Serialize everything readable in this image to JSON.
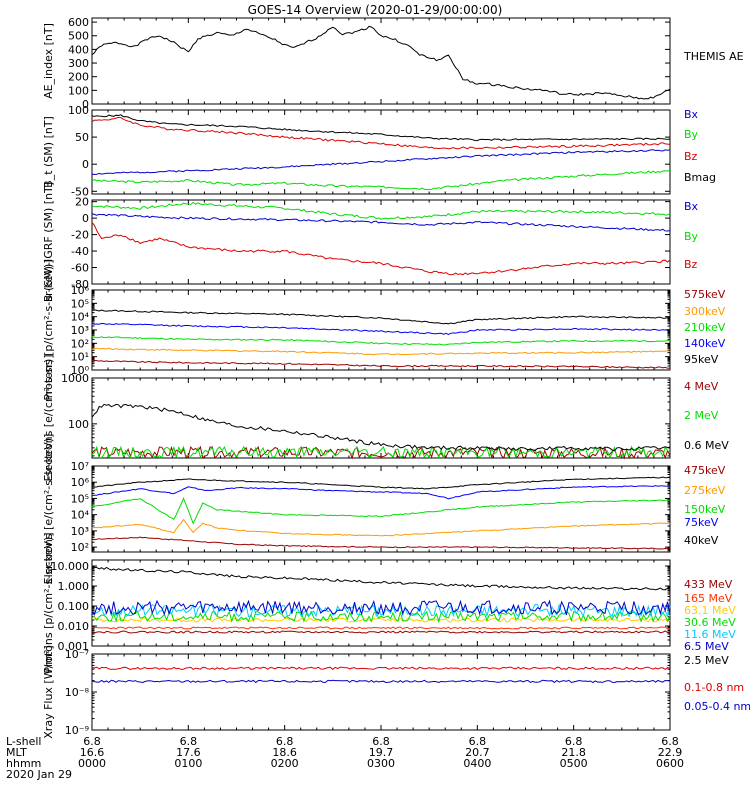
{
  "title": "GOES-14 Overview (2020-01-29/00:00:00)",
  "x_axis": {
    "row_labels": [
      "L-shell",
      "MLT",
      "hhmm",
      "2020 Jan 29"
    ],
    "lshell": [
      "6.8",
      "6.8",
      "6.8",
      "6.8",
      "6.8",
      "6.8",
      "6.8"
    ],
    "mlt": [
      "16.6",
      "17.6",
      "18.6",
      "19.7",
      "20.7",
      "21.8",
      "22.9"
    ],
    "hhmm": [
      "0000",
      "0100",
      "0200",
      "0300",
      "0400",
      "0500",
      "0600"
    ]
  },
  "chart_data": [
    {
      "type": "line",
      "id": "ae",
      "ylabel": "AE_index [nT]",
      "scale": "linear",
      "ylim": [
        0,
        630
      ],
      "ticks": [
        0,
        100,
        200,
        300,
        400,
        500,
        600
      ],
      "tick_labels": [
        "0",
        "100",
        "200",
        "300",
        "400",
        "500",
        "600"
      ],
      "series": [
        {
          "name": "THEMIS AE",
          "color": "#000000",
          "noise": 8,
          "seed": 1,
          "t": [
            0,
            0.1,
            0.25,
            0.45,
            0.55,
            0.7,
            0.85,
            1,
            1.1,
            1.3,
            1.45,
            1.6,
            1.75,
            1.9,
            2.0,
            2.1,
            2.25,
            2.35,
            2.5,
            2.6,
            2.75,
            2.9,
            3.0,
            3.15,
            3.3,
            3.4,
            3.5,
            3.6,
            3.7,
            3.75,
            3.85,
            4.0,
            4.2,
            4.5,
            4.7,
            4.9,
            5.1,
            5.3,
            5.5,
            5.7,
            5.85,
            6.0
          ],
          "v": [
            360,
            430,
            450,
            420,
            470,
            500,
            450,
            380,
            480,
            520,
            500,
            550,
            510,
            470,
            430,
            410,
            460,
            490,
            570,
            510,
            530,
            570,
            500,
            470,
            420,
            360,
            340,
            320,
            360,
            300,
            180,
            150,
            140,
            110,
            100,
            70,
            70,
            80,
            60,
            40,
            50,
            110
          ]
        }
      ]
    },
    {
      "type": "line",
      "id": "b_sm",
      "ylabel": "B_t (SM) [nT]",
      "scale": "linear",
      "ylim": [
        -55,
        100
      ],
      "ticks": [
        -50,
        0,
        50,
        100
      ],
      "tick_labels": [
        "-50",
        "0",
        "50",
        "100"
      ],
      "series": [
        {
          "name": "Bx",
          "color": "#0000cc",
          "noise": 1.5,
          "seed": 2,
          "t": [
            0,
            1,
            2,
            3,
            4,
            5,
            6
          ],
          "v": [
            -18,
            -12,
            -5,
            5,
            15,
            22,
            26
          ]
        },
        {
          "name": "By",
          "color": "#00dd00",
          "noise": 2,
          "seed": 3,
          "t": [
            0,
            0.5,
            1,
            1.5,
            2,
            2.5,
            3,
            3.5,
            3.8,
            4.3,
            5,
            6
          ],
          "v": [
            -30,
            -33,
            -30,
            -38,
            -35,
            -40,
            -42,
            -45,
            -40,
            -30,
            -22,
            -12
          ]
        },
        {
          "name": "Bz",
          "color": "#dd0000",
          "noise": 2,
          "seed": 4,
          "t": [
            0,
            0.3,
            0.5,
            0.8,
            1.5,
            2,
            3,
            3.5,
            4,
            5,
            6
          ],
          "v": [
            80,
            85,
            72,
            65,
            58,
            50,
            38,
            30,
            30,
            33,
            38
          ]
        },
        {
          "name": "Bmag",
          "color": "#000000",
          "noise": 1.5,
          "seed": 5,
          "t": [
            0,
            0.3,
            0.5,
            0.8,
            1.5,
            2,
            3,
            3.5,
            4,
            5,
            6
          ],
          "v": [
            88,
            90,
            80,
            74,
            70,
            64,
            55,
            48,
            45,
            46,
            47
          ]
        }
      ]
    },
    {
      "type": "line",
      "id": "b_igrf",
      "ylabel": "B (SM)-IGRF (SM) [nT]",
      "scale": "linear",
      "ylim": [
        -80,
        22
      ],
      "ticks": [
        -80,
        -60,
        -40,
        -20,
        0,
        20
      ],
      "tick_labels": [
        "-80",
        "-60",
        "-40",
        "-20",
        "0",
        "20"
      ],
      "series": [
        {
          "name": "Bx",
          "color": "#0000cc",
          "noise": 1.2,
          "seed": 6,
          "t": [
            0,
            0.5,
            1,
            2,
            3,
            3.5,
            4,
            5,
            6
          ],
          "v": [
            5,
            2,
            0,
            -2,
            -5,
            -8,
            -5,
            -10,
            -15
          ]
        },
        {
          "name": "By",
          "color": "#00dd00",
          "noise": 1.5,
          "seed": 7,
          "t": [
            0,
            0.5,
            1,
            1.5,
            2,
            2.5,
            3,
            3.5,
            4,
            5,
            6
          ],
          "v": [
            15,
            12,
            18,
            15,
            12,
            5,
            0,
            2,
            8,
            8,
            5
          ]
        },
        {
          "name": "Bz",
          "color": "#dd0000",
          "noise": 1.5,
          "seed": 8,
          "t": [
            0,
            0.1,
            0.3,
            0.5,
            0.7,
            1,
            1.5,
            2,
            2.5,
            3,
            3.5,
            3.8,
            4.2,
            5,
            5.5,
            6
          ],
          "v": [
            -5,
            -25,
            -20,
            -30,
            -25,
            -35,
            -40,
            -40,
            -50,
            -55,
            -65,
            -68,
            -65,
            -55,
            -55,
            -52
          ]
        }
      ]
    },
    {
      "type": "line",
      "id": "protons_low",
      "ylabel": "Protons [p/(cm²-s-sr-keV)]",
      "scale": "log",
      "ylim": [
        1,
        1000000
      ],
      "ticks": [
        1,
        10,
        100,
        1000,
        10000,
        100000,
        1000000
      ],
      "tick_labels": [
        "10⁰",
        "10¹",
        "10²",
        "10³",
        "10⁴",
        "10⁵",
        "10⁶"
      ],
      "series": [
        {
          "name": "575keV",
          "color": "#990000",
          "noise": 0.05,
          "seed": 9,
          "t": [
            0,
            0.5,
            1,
            2,
            3,
            4,
            5,
            6
          ],
          "v": [
            5,
            4,
            3.5,
            3,
            2,
            2,
            1.8,
            1.5
          ]
        },
        {
          "name": "300keV",
          "color": "#ff9900",
          "noise": 0.05,
          "seed": 10,
          "t": [
            0,
            0.5,
            1,
            2,
            3,
            4,
            5,
            6
          ],
          "v": [
            40,
            35,
            30,
            25,
            15,
            18,
            20,
            25
          ]
        },
        {
          "name": "210keV",
          "color": "#00dd00",
          "noise": 0.05,
          "seed": 11,
          "t": [
            0,
            0.5,
            1,
            2,
            3,
            3.7,
            4,
            5,
            6
          ],
          "v": [
            300,
            250,
            200,
            180,
            100,
            80,
            120,
            150,
            150
          ]
        },
        {
          "name": "140keV",
          "color": "#0000ff",
          "noise": 0.05,
          "seed": 12,
          "t": [
            0,
            0.5,
            1,
            2,
            3,
            3.7,
            4,
            5,
            6
          ],
          "v": [
            3000,
            2500,
            2000,
            1500,
            800,
            500,
            1000,
            1200,
            1000
          ]
        },
        {
          "name": "95keV",
          "color": "#000000",
          "noise": 0.05,
          "seed": 13,
          "t": [
            0,
            0.5,
            1,
            2,
            3,
            3.7,
            4,
            5,
            6
          ],
          "v": [
            30000,
            25000,
            20000,
            15000,
            8000,
            3000,
            6000,
            10000,
            8000
          ]
        }
      ]
    },
    {
      "type": "line",
      "id": "electrons_mev",
      "ylabel": "Electrons [e/(cm²-s-sr)]",
      "scale": "log",
      "ylim": [
        18,
        1000
      ],
      "ticks": [
        100,
        1000
      ],
      "tick_labels": [
        "100",
        "1000"
      ],
      "series": [
        {
          "name": "4 MeV",
          "color": "#990000",
          "noise": 0.12,
          "seed": 14,
          "t": [
            0,
            6
          ],
          "v": [
            24,
            23
          ]
        },
        {
          "name": "2 MeV",
          "color": "#00dd00",
          "noise": 0.12,
          "seed": 15,
          "t": [
            0,
            6
          ],
          "v": [
            24,
            24
          ]
        },
        {
          "name": "0.6 MeV",
          "color": "#000000",
          "noise": 0.04,
          "seed": 16,
          "t": [
            0,
            0.1,
            0.5,
            0.9,
            1.2,
            1.5,
            2,
            2.5,
            3,
            3.5,
            4,
            4.5,
            5,
            5.5,
            6
          ],
          "v": [
            150,
            250,
            240,
            180,
            120,
            90,
            70,
            50,
            35,
            30,
            30,
            28,
            30,
            28,
            30
          ]
        }
      ]
    },
    {
      "type": "line",
      "id": "electrons_kev",
      "ylabel": "Electrons [e/(cm²-s-sr-keV)]",
      "scale": "log",
      "ylim": [
        50,
        10000000
      ],
      "ticks": [
        100,
        1000,
        10000,
        100000,
        1000000,
        10000000
      ],
      "tick_labels": [
        "10²",
        "10³",
        "10⁴",
        "10⁵",
        "10⁶",
        "10⁷"
      ],
      "series": [
        {
          "name": "475keV",
          "color": "#990000",
          "noise": 0.03,
          "seed": 17,
          "t": [
            0,
            0.5,
            1,
            1.5,
            2,
            3,
            4,
            5,
            6
          ],
          "v": [
            300,
            400,
            250,
            150,
            120,
            100,
            100,
            90,
            80
          ]
        },
        {
          "name": "275keV",
          "color": "#ff9900",
          "noise": 0.03,
          "seed": 18,
          "t": [
            0,
            0.5,
            0.85,
            0.95,
            1.05,
            1.15,
            1.3,
            1.6,
            2,
            3,
            3.5,
            4,
            5,
            6
          ],
          "v": [
            1500,
            2500,
            800,
            5000,
            800,
            3000,
            1500,
            1000,
            700,
            500,
            700,
            1000,
            2000,
            3000
          ]
        },
        {
          "name": "150keV",
          "color": "#00dd00",
          "noise": 0.03,
          "seed": 19,
          "t": [
            0,
            0.5,
            0.85,
            0.95,
            1.05,
            1.15,
            1.3,
            1.6,
            2,
            3,
            3.5,
            4,
            5,
            6
          ],
          "v": [
            30000,
            100000,
            5000,
            100000,
            3000,
            50000,
            20000,
            15000,
            10000,
            8000,
            15000,
            30000,
            60000,
            80000
          ]
        },
        {
          "name": "75keV",
          "color": "#0000ff",
          "noise": 0.03,
          "seed": 20,
          "t": [
            0,
            0.5,
            0.85,
            1,
            1.2,
            1.5,
            2,
            2.5,
            3,
            3.5,
            3.7,
            4,
            5,
            6
          ],
          "v": [
            150000,
            400000,
            200000,
            500000,
            300000,
            450000,
            400000,
            300000,
            250000,
            200000,
            100000,
            250000,
            500000,
            600000
          ]
        },
        {
          "name": "40keV",
          "color": "#000000",
          "noise": 0.03,
          "seed": 21,
          "t": [
            0,
            0.5,
            1,
            1.5,
            2,
            2.5,
            3,
            3.5,
            4,
            5,
            6
          ],
          "v": [
            500000,
            1000000,
            1500000,
            1200000,
            1000000,
            700000,
            500000,
            400000,
            700000,
            1500000,
            2000000
          ]
        }
      ]
    },
    {
      "type": "line",
      "id": "protons_mev",
      "ylabel": "Protons [p/(cm²-s-sr-keV)]",
      "scale": "log",
      "ylim": [
        0.001,
        20
      ],
      "ticks": [
        0.001,
        0.01,
        0.1,
        1,
        10
      ],
      "tick_labels": [
        "0.001",
        "0.010",
        "0.100",
        "1.000",
        "10.000"
      ],
      "series": [
        {
          "name": "433 MeV",
          "color": "#990000",
          "noise": 0.05,
          "seed": 22,
          "t": [
            0,
            6
          ],
          "v": [
            0.005,
            0.005
          ]
        },
        {
          "name": "165 MeV",
          "color": "#ff3300",
          "noise": 0.05,
          "seed": 23,
          "t": [
            0,
            6
          ],
          "v": [
            0.008,
            0.008
          ]
        },
        {
          "name": "63.1 MeV",
          "color": "#ffcc00",
          "noise": 0.1,
          "seed": 24,
          "t": [
            0,
            6
          ],
          "v": [
            0.02,
            0.02
          ]
        },
        {
          "name": "30.6 MeV",
          "color": "#00dd00",
          "noise": 0.25,
          "seed": 25,
          "t": [
            0,
            6
          ],
          "v": [
            0.03,
            0.03
          ]
        },
        {
          "name": "11.6 MeV",
          "color": "#00ccff",
          "noise": 0.3,
          "seed": 26,
          "t": [
            0,
            6
          ],
          "v": [
            0.06,
            0.06
          ]
        },
        {
          "name": "6.5 MeV",
          "color": "#0000cc",
          "noise": 0.35,
          "seed": 27,
          "t": [
            0,
            6
          ],
          "v": [
            0.08,
            0.08
          ]
        },
        {
          "name": "2.5 MeV",
          "color": "#000000",
          "noise": 0.06,
          "seed": 28,
          "t": [
            0,
            0.5,
            1,
            1.5,
            2,
            2.5,
            3,
            4,
            5,
            6
          ],
          "v": [
            8,
            6,
            5,
            3,
            2.5,
            2,
            1.5,
            1,
            0.8,
            0.7
          ]
        }
      ]
    },
    {
      "type": "line",
      "id": "xray",
      "ylabel": "Xray Flux [W/m²]",
      "scale": "log",
      "ylim": [
        1e-09,
        1e-07
      ],
      "ticks": [
        1e-09,
        1e-08,
        1e-07
      ],
      "tick_labels": [
        "10⁻⁹",
        "10⁻⁸",
        "10⁻⁷"
      ],
      "series": [
        {
          "name": "0.1-0.8 nm",
          "color": "#dd0000",
          "noise": 0.03,
          "seed": 29,
          "t": [
            0,
            6
          ],
          "v": [
            4.2e-08,
            4.2e-08
          ]
        },
        {
          "name": "0.05-0.4 nm",
          "color": "#0000cc",
          "noise": 0.03,
          "seed": 30,
          "t": [
            0,
            6
          ],
          "v": [
            1.9e-08,
            1.9e-08
          ]
        }
      ]
    }
  ]
}
